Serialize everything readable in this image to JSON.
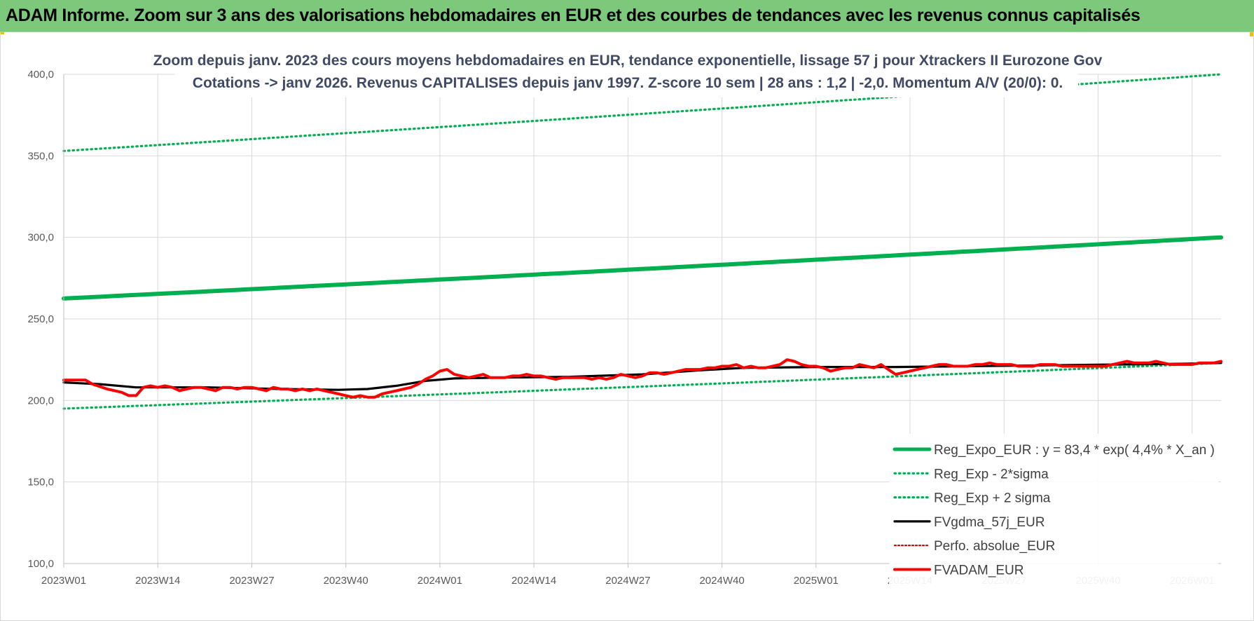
{
  "banner": {
    "title": "ADAM Informe. Zoom sur 3 ans des valorisations hebdomadaires en EUR et des courbes de tendances avec les revenus connus capitalisés"
  },
  "colors": {
    "banner_bg": "#7cc97c",
    "reg_expo": "#00b050",
    "reg_band": "#00b050",
    "fvgdma": "#000000",
    "perfo": "#c00000",
    "fvadam": "#ff0000",
    "grid": "#d9d9d9"
  },
  "chart_data": {
    "type": "line",
    "subtitle_line1": "Zoom depuis janv. 2023 des cours moyens hebdomadaires en EUR, tendance exponentielle, lissage 57 j pour Xtrackers II Eurozone Gov",
    "subtitle_line2": "Cotations -> janv 2026. Revenus CAPITALISES depuis janv 1997. Z-score 10 sem | 28 ans : 1,2 | -2,0. Momentum A/V (20/0): 0.",
    "ylim": [
      100,
      400
    ],
    "y_ticks": [
      "100,0",
      "150,0",
      "200,0",
      "250,0",
      "300,0",
      "350,0",
      "400,0"
    ],
    "y_tick_values": [
      100,
      150,
      200,
      250,
      300,
      350,
      400
    ],
    "x_ticks": [
      "2023W01",
      "2023W14",
      "2023W27",
      "2023W40",
      "2024W01",
      "2024W14",
      "2024W27",
      "2024W40",
      "2025W01",
      "2025W14",
      "2025W27",
      "2025W40",
      "2026W01"
    ],
    "x_tick_weeks": [
      0,
      13,
      26,
      39,
      52,
      65,
      78,
      91,
      104,
      117,
      130,
      143,
      156
    ],
    "n_weeks": 161,
    "grid": true,
    "legend_position": "bottom-right",
    "series": [
      {
        "name": "Reg_Expo_EUR : y = 83,4 * exp( 4,4% *  X_an )",
        "style": "thick-solid",
        "start": 262.5,
        "end": 300.0
      },
      {
        "name": "Reg_Exp - 2*sigma",
        "style": "dotted",
        "start": 195.0,
        "end": 223.0
      },
      {
        "name": "Reg_Exp + 2 sigma",
        "style": "dotted",
        "start": 353.0,
        "end": 400.0
      },
      {
        "name": "FVgdma_57j_EUR",
        "style": "solid-black",
        "points": [
          [
            0,
            211
          ],
          [
            5,
            210
          ],
          [
            10,
            208
          ],
          [
            20,
            208
          ],
          [
            30,
            207
          ],
          [
            38,
            206.5
          ],
          [
            42,
            207
          ],
          [
            46,
            209
          ],
          [
            50,
            212
          ],
          [
            54,
            213.5
          ],
          [
            60,
            214
          ],
          [
            70,
            214.5
          ],
          [
            80,
            216
          ],
          [
            88,
            218.5
          ],
          [
            94,
            220
          ],
          [
            104,
            220.5
          ],
          [
            115,
            220.5
          ],
          [
            125,
            221
          ],
          [
            135,
            221.5
          ],
          [
            145,
            222
          ],
          [
            155,
            222.5
          ],
          [
            160,
            223
          ]
        ]
      },
      {
        "name": "Perfo. absolue_EUR",
        "style": "dotted-darkred",
        "points": []
      },
      {
        "name": "FVADAM_EUR",
        "style": "thick-red",
        "points": [
          [
            0,
            212.5
          ],
          [
            3,
            212.5
          ],
          [
            4,
            210
          ],
          [
            6,
            207
          ],
          [
            8,
            205
          ],
          [
            9,
            203
          ],
          [
            10,
            203
          ],
          [
            11,
            208
          ],
          [
            12,
            209
          ],
          [
            13,
            208
          ],
          [
            14,
            209
          ],
          [
            15,
            208
          ],
          [
            16,
            206
          ],
          [
            17,
            207
          ],
          [
            18,
            208
          ],
          [
            19,
            208
          ],
          [
            20,
            207
          ],
          [
            21,
            206
          ],
          [
            22,
            208
          ],
          [
            23,
            208
          ],
          [
            24,
            207
          ],
          [
            25,
            208
          ],
          [
            26,
            208
          ],
          [
            27,
            207
          ],
          [
            28,
            206
          ],
          [
            29,
            208
          ],
          [
            30,
            207
          ],
          [
            31,
            207
          ],
          [
            32,
            206
          ],
          [
            33,
            207
          ],
          [
            34,
            206
          ],
          [
            35,
            207
          ],
          [
            36,
            206
          ],
          [
            37,
            205
          ],
          [
            38,
            204
          ],
          [
            39,
            203
          ],
          [
            40,
            202
          ],
          [
            41,
            203
          ],
          [
            42,
            202
          ],
          [
            43,
            202
          ],
          [
            44,
            204
          ],
          [
            45,
            205
          ],
          [
            46,
            206
          ],
          [
            47,
            207
          ],
          [
            48,
            208
          ],
          [
            49,
            210
          ],
          [
            50,
            213
          ],
          [
            51,
            215
          ],
          [
            52,
            218
          ],
          [
            53,
            219
          ],
          [
            54,
            216
          ],
          [
            55,
            215
          ],
          [
            56,
            214
          ],
          [
            57,
            215
          ],
          [
            58,
            216
          ],
          [
            59,
            214
          ],
          [
            60,
            214
          ],
          [
            61,
            214
          ],
          [
            62,
            215
          ],
          [
            63,
            215
          ],
          [
            64,
            216
          ],
          [
            65,
            215
          ],
          [
            66,
            215
          ],
          [
            67,
            214
          ],
          [
            68,
            213
          ],
          [
            69,
            214
          ],
          [
            70,
            214
          ],
          [
            71,
            214
          ],
          [
            72,
            214
          ],
          [
            73,
            213
          ],
          [
            74,
            214
          ],
          [
            75,
            213
          ],
          [
            76,
            214
          ],
          [
            77,
            216
          ],
          [
            78,
            215
          ],
          [
            79,
            214
          ],
          [
            80,
            215
          ],
          [
            81,
            217
          ],
          [
            82,
            217
          ],
          [
            83,
            216
          ],
          [
            84,
            217
          ],
          [
            85,
            218
          ],
          [
            86,
            219
          ],
          [
            87,
            219
          ],
          [
            88,
            219
          ],
          [
            89,
            220
          ],
          [
            90,
            220
          ],
          [
            91,
            221
          ],
          [
            92,
            221
          ],
          [
            93,
            222
          ],
          [
            94,
            220
          ],
          [
            95,
            221
          ],
          [
            96,
            220
          ],
          [
            97,
            220
          ],
          [
            98,
            221
          ],
          [
            99,
            222
          ],
          [
            100,
            225
          ],
          [
            101,
            224
          ],
          [
            102,
            222
          ],
          [
            103,
            221
          ],
          [
            104,
            221
          ],
          [
            105,
            220
          ],
          [
            106,
            218
          ],
          [
            107,
            219
          ],
          [
            108,
            220
          ],
          [
            109,
            220
          ],
          [
            110,
            222
          ],
          [
            111,
            221
          ],
          [
            112,
            220
          ],
          [
            113,
            222
          ],
          [
            114,
            219
          ],
          [
            115,
            216
          ],
          [
            116,
            217
          ],
          [
            117,
            218
          ],
          [
            118,
            219
          ],
          [
            119,
            220
          ],
          [
            120,
            221
          ],
          [
            121,
            222
          ],
          [
            122,
            222
          ],
          [
            123,
            221
          ],
          [
            124,
            221
          ],
          [
            125,
            221
          ],
          [
            126,
            222
          ],
          [
            127,
            222
          ],
          [
            128,
            223
          ],
          [
            129,
            222
          ],
          [
            130,
            222
          ],
          [
            131,
            222
          ],
          [
            132,
            221
          ],
          [
            133,
            221
          ],
          [
            134,
            221
          ],
          [
            135,
            222
          ],
          [
            136,
            222
          ],
          [
            137,
            222
          ],
          [
            138,
            221
          ],
          [
            139,
            221
          ],
          [
            140,
            221
          ],
          [
            141,
            221
          ],
          [
            142,
            221
          ],
          [
            143,
            221
          ],
          [
            144,
            221
          ],
          [
            145,
            222
          ],
          [
            146,
            223
          ],
          [
            147,
            224
          ],
          [
            148,
            223
          ],
          [
            149,
            223
          ],
          [
            150,
            223
          ],
          [
            151,
            224
          ],
          [
            152,
            223
          ],
          [
            153,
            222
          ],
          [
            154,
            222
          ],
          [
            155,
            222
          ],
          [
            156,
            222
          ],
          [
            157,
            223
          ],
          [
            158,
            223
          ],
          [
            159,
            223
          ],
          [
            160,
            224
          ]
        ]
      }
    ]
  }
}
